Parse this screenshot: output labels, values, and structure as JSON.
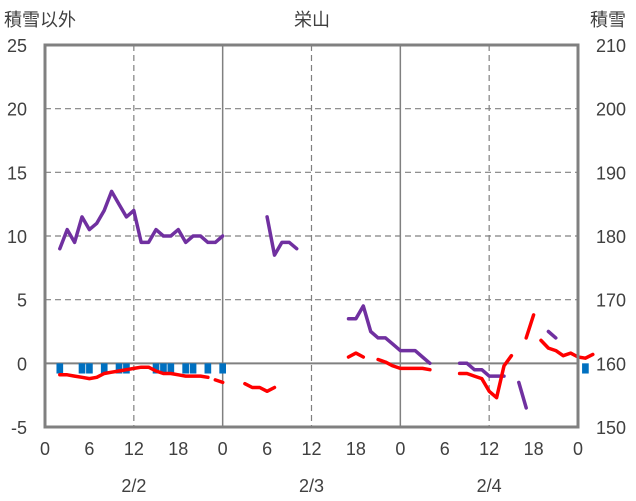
{
  "chart_data": {
    "type": "line",
    "title": "栄山",
    "ylabel_left": "積雪以外",
    "ylabel_right": "積雪",
    "ylim_left": [
      -5,
      25
    ],
    "yticks_left": [
      -5,
      0,
      5,
      10,
      15,
      20,
      25
    ],
    "ylim_right": [
      150,
      210
    ],
    "yticks_right": [
      150,
      160,
      170,
      180,
      190,
      200,
      210
    ],
    "x_hours": [
      0,
      72
    ],
    "xtick_labels": [
      "0",
      "6",
      "12",
      "18",
      "0",
      "6",
      "12",
      "18",
      "0",
      "6",
      "12",
      "18",
      "0"
    ],
    "day_labels": [
      {
        "hour": 12,
        "text": "2/2"
      },
      {
        "hour": 36,
        "text": "2/3"
      },
      {
        "hour": 60,
        "text": "2/4"
      }
    ],
    "grid": true,
    "legend": "none",
    "colors": {
      "snow_depth": "#7030A0",
      "temperature": "#FF0000",
      "precipitation": "#0070C0",
      "axis": "#808080",
      "grid": "#808080"
    },
    "series": [
      {
        "key": "snow_depth",
        "axis": "right",
        "segments": [
          [
            [
              2,
              178
            ],
            [
              3,
              181
            ],
            [
              4,
              179
            ],
            [
              5,
              183
            ],
            [
              6,
              181
            ],
            [
              7,
              182
            ],
            [
              8,
              184
            ],
            [
              9,
              187
            ],
            [
              10,
              185
            ],
            [
              11,
              183
            ],
            [
              12,
              184
            ],
            [
              13,
              179
            ],
            [
              14,
              179
            ],
            [
              15,
              181
            ],
            [
              16,
              180
            ],
            [
              17,
              180
            ],
            [
              18,
              181
            ],
            [
              19,
              179
            ],
            [
              20,
              180
            ],
            [
              21,
              180
            ],
            [
              22,
              179
            ],
            [
              23,
              179
            ],
            [
              24,
              180
            ]
          ],
          [
            [
              30,
              183
            ],
            [
              31,
              177
            ],
            [
              32,
              179
            ],
            [
              33,
              179
            ],
            [
              34,
              178
            ]
          ],
          [
            [
              41,
              167
            ],
            [
              42,
              167
            ],
            [
              43,
              169
            ],
            [
              44,
              165
            ],
            [
              45,
              164
            ],
            [
              46,
              164
            ],
            [
              47,
              163
            ],
            [
              48,
              162
            ],
            [
              49,
              162
            ],
            [
              50,
              162
            ],
            [
              51,
              161
            ],
            [
              52,
              160
            ]
          ],
          [
            [
              56,
              160
            ],
            [
              57,
              160
            ],
            [
              58,
              159
            ],
            [
              59,
              159
            ],
            [
              60,
              158
            ],
            [
              61,
              158
            ],
            [
              62,
              158
            ]
          ],
          [
            [
              64,
              157
            ],
            [
              65,
              153
            ]
          ],
          [
            [
              68,
              165
            ],
            [
              69,
              164
            ]
          ]
        ]
      },
      {
        "key": "temperature",
        "axis": "left",
        "segments": [
          [
            [
              2,
              -0.9
            ],
            [
              3,
              -0.9
            ],
            [
              4,
              -1.0
            ],
            [
              5,
              -1.1
            ],
            [
              6,
              -1.2
            ],
            [
              7,
              -1.1
            ],
            [
              8,
              -0.8
            ],
            [
              9,
              -0.7
            ],
            [
              10,
              -0.6
            ],
            [
              11,
              -0.5
            ],
            [
              12,
              -0.4
            ],
            [
              13,
              -0.3
            ],
            [
              14,
              -0.3
            ],
            [
              15,
              -0.6
            ],
            [
              16,
              -0.8
            ],
            [
              17,
              -0.8
            ],
            [
              18,
              -0.9
            ],
            [
              19,
              -1.0
            ],
            [
              20,
              -1.0
            ],
            [
              21,
              -1.0
            ],
            [
              22,
              -1.1
            ]
          ],
          [
            [
              23,
              -1.3
            ],
            [
              24,
              -1.5
            ]
          ],
          [
            [
              27,
              -1.6
            ],
            [
              28,
              -1.9
            ],
            [
              29,
              -1.9
            ],
            [
              30,
              -2.2
            ],
            [
              31,
              -1.9
            ]
          ],
          [
            [
              41,
              0.5
            ],
            [
              42,
              0.8
            ],
            [
              43,
              0.5
            ]
          ],
          [
            [
              45,
              0.3
            ],
            [
              46,
              0.1
            ],
            [
              47,
              -0.2
            ],
            [
              48,
              -0.4
            ],
            [
              49,
              -0.4
            ],
            [
              50,
              -0.4
            ],
            [
              51,
              -0.4
            ],
            [
              52,
              -0.5
            ]
          ],
          [
            [
              56,
              -0.8
            ],
            [
              57,
              -0.8
            ],
            [
              58,
              -1.0
            ],
            [
              59,
              -1.2
            ],
            [
              60,
              -2.2
            ],
            [
              61,
              -2.7
            ],
            [
              62,
              -0.2
            ],
            [
              63,
              0.6
            ]
          ],
          [
            [
              65,
              2.0
            ],
            [
              66,
              3.8
            ]
          ],
          [
            [
              67,
              1.8
            ],
            [
              68,
              1.2
            ],
            [
              69,
              1.0
            ],
            [
              70,
              0.6
            ],
            [
              71,
              0.8
            ],
            [
              72,
              0.5
            ],
            [
              73,
              0.4
            ],
            [
              74,
              0.7
            ]
          ]
        ]
      },
      {
        "key": "precipitation",
        "axis": "left",
        "type": "bar",
        "points": [
          [
            2,
            -0.8
          ],
          [
            5,
            -0.8
          ],
          [
            6,
            -0.8
          ],
          [
            8,
            -0.8
          ],
          [
            10,
            -0.8
          ],
          [
            11,
            -0.8
          ],
          [
            15,
            -0.8
          ],
          [
            16,
            -0.8
          ],
          [
            17,
            -0.8
          ],
          [
            19,
            -0.8
          ],
          [
            20,
            -0.8
          ],
          [
            22,
            -0.8
          ],
          [
            24,
            -0.8
          ],
          [
            73,
            -0.8
          ]
        ]
      }
    ]
  }
}
